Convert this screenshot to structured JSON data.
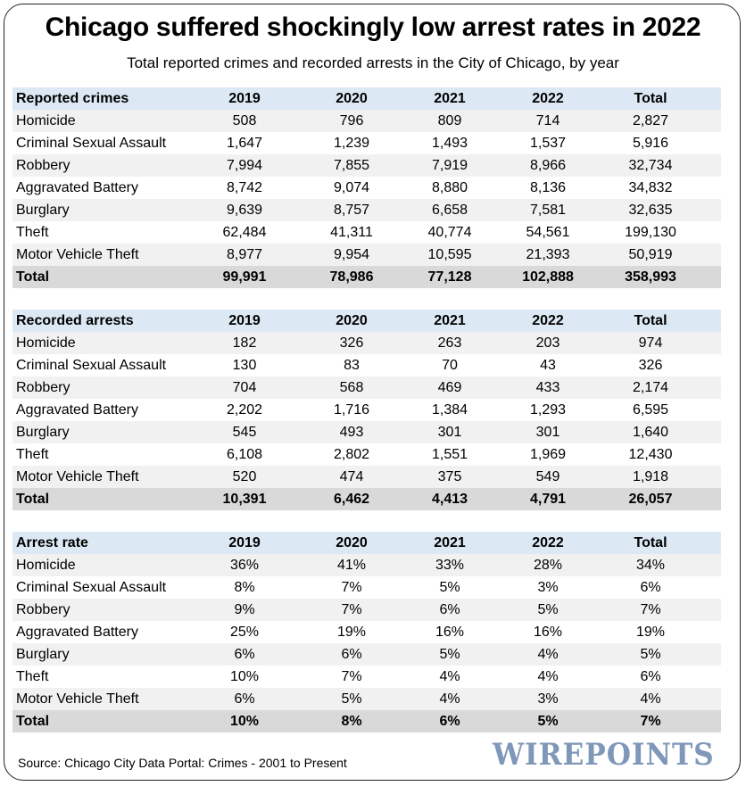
{
  "chart_data": {
    "type": "table",
    "title": "Chicago suffered shockingly low arrest rates in 2022",
    "subtitle": "Total reported crimes and recorded arrests in the City of Chicago, by year",
    "columns": [
      "2019",
      "2020",
      "2021",
      "2022",
      "Total"
    ],
    "tables": [
      {
        "header": "Reported crimes",
        "rows": [
          {
            "label": "Homicide",
            "values": [
              "508",
              "796",
              "809",
              "714",
              "2,827"
            ]
          },
          {
            "label": "Criminal Sexual Assault",
            "values": [
              "1,647",
              "1,239",
              "1,493",
              "1,537",
              "5,916"
            ]
          },
          {
            "label": "Robbery",
            "values": [
              "7,994",
              "7,855",
              "7,919",
              "8,966",
              "32,734"
            ]
          },
          {
            "label": "Aggravated Battery",
            "values": [
              "8,742",
              "9,074",
              "8,880",
              "8,136",
              "34,832"
            ]
          },
          {
            "label": "Burglary",
            "values": [
              "9,639",
              "8,757",
              "6,658",
              "7,581",
              "32,635"
            ]
          },
          {
            "label": "Theft",
            "values": [
              "62,484",
              "41,311",
              "40,774",
              "54,561",
              "199,130"
            ]
          },
          {
            "label": "Motor Vehicle Theft",
            "values": [
              "8,977",
              "9,954",
              "10,595",
              "21,393",
              "50,919"
            ]
          }
        ],
        "total": {
          "label": "Total",
          "values": [
            "99,991",
            "78,986",
            "77,128",
            "102,888",
            "358,993"
          ]
        }
      },
      {
        "header": "Recorded arrests",
        "rows": [
          {
            "label": "Homicide",
            "values": [
              "182",
              "326",
              "263",
              "203",
              "974"
            ]
          },
          {
            "label": "Criminal Sexual Assault",
            "values": [
              "130",
              "83",
              "70",
              "43",
              "326"
            ]
          },
          {
            "label": "Robbery",
            "values": [
              "704",
              "568",
              "469",
              "433",
              "2,174"
            ]
          },
          {
            "label": "Aggravated Battery",
            "values": [
              "2,202",
              "1,716",
              "1,384",
              "1,293",
              "6,595"
            ]
          },
          {
            "label": "Burglary",
            "values": [
              "545",
              "493",
              "301",
              "301",
              "1,640"
            ]
          },
          {
            "label": "Theft",
            "values": [
              "6,108",
              "2,802",
              "1,551",
              "1,969",
              "12,430"
            ]
          },
          {
            "label": "Motor Vehicle Theft",
            "values": [
              "520",
              "474",
              "375",
              "549",
              "1,918"
            ]
          }
        ],
        "total": {
          "label": "Total",
          "values": [
            "10,391",
            "6,462",
            "4,413",
            "4,791",
            "26,057"
          ]
        }
      },
      {
        "header": "Arrest rate",
        "rows": [
          {
            "label": "Homicide",
            "values": [
              "36%",
              "41%",
              "33%",
              "28%",
              "34%"
            ]
          },
          {
            "label": "Criminal Sexual Assault",
            "values": [
              "8%",
              "7%",
              "5%",
              "3%",
              "6%"
            ]
          },
          {
            "label": "Robbery",
            "values": [
              "9%",
              "7%",
              "6%",
              "5%",
              "7%"
            ]
          },
          {
            "label": "Aggravated Battery",
            "values": [
              "25%",
              "19%",
              "16%",
              "16%",
              "19%"
            ]
          },
          {
            "label": "Burglary",
            "values": [
              "6%",
              "6%",
              "5%",
              "4%",
              "5%"
            ]
          },
          {
            "label": "Theft",
            "values": [
              "10%",
              "7%",
              "4%",
              "4%",
              "6%"
            ]
          },
          {
            "label": "Motor Vehicle Theft",
            "values": [
              "6%",
              "5%",
              "4%",
              "3%",
              "4%"
            ]
          }
        ],
        "total": {
          "label": "Total",
          "values": [
            "10%",
            "8%",
            "6%",
            "5%",
            "7%"
          ]
        }
      }
    ],
    "source": "Source: Chicago City Data Portal: Crimes - 2001 to Present",
    "brand": "WIREPOINTS"
  },
  "colors": {
    "header_bg": "#dce9f4",
    "odd_row_bg": "#f1f1f1",
    "total_row_bg": "#d9d9d9",
    "brand": "#7f97b8"
  }
}
